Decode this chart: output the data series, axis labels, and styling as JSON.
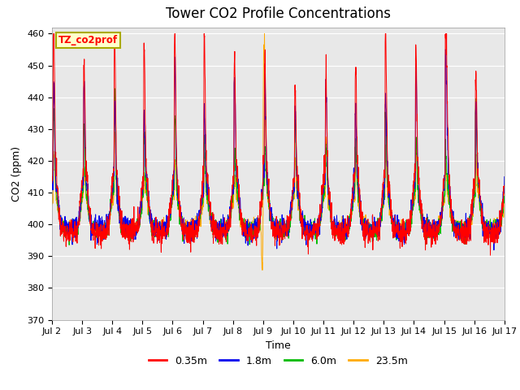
{
  "title": "Tower CO2 Profile Concentrations",
  "xlabel": "Time",
  "ylabel": "CO2 (ppm)",
  "ylim": [
    370,
    462
  ],
  "yticks": [
    370,
    380,
    390,
    400,
    410,
    420,
    430,
    440,
    450,
    460
  ],
  "x_labels": [
    "Jul 2",
    "Jul 3",
    "Jul 4",
    "Jul 5",
    "Jul 6",
    "Jul 7",
    "Jul 8",
    "Jul 9",
    "Jul 10",
    "Jul 11",
    "Jul 12",
    "Jul 13",
    "Jul 14",
    "Jul 15",
    "Jul 16",
    "Jul 17"
  ],
  "colors": {
    "0.35m": "#ff0000",
    "1.8m": "#0000ee",
    "6.0m": "#00bb00",
    "23.5m": "#ffaa00"
  },
  "legend_label": "TZ_co2prof",
  "legend_box_color": "#ffffcc",
  "legend_box_edge": "#aaaa00",
  "plot_bg": "#e8e8e8",
  "grid_color": "#ffffff",
  "title_fontsize": 12,
  "label_fontsize": 9,
  "tick_fontsize": 8
}
